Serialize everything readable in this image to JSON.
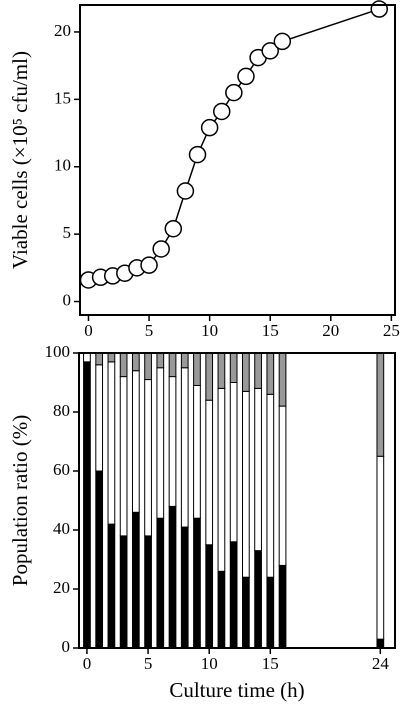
{
  "chart_data": [
    {
      "type": "line",
      "y_label": "Viable cells (×10⁵ cfu/ml)",
      "x": [
        0,
        1,
        2,
        3,
        4,
        5,
        6,
        7,
        8,
        9,
        10,
        11,
        12,
        13,
        14,
        15,
        16,
        24
      ],
      "values": [
        1.6,
        1.8,
        1.9,
        2.1,
        2.5,
        2.7,
        3.9,
        5.4,
        8.2,
        10.9,
        12.9,
        14.1,
        15.5,
        16.7,
        18.1,
        18.6,
        19.3,
        21.7
      ],
      "color": "#000000",
      "marker_fill": "#ffffff",
      "xlim": [
        -0.7,
        25.3
      ],
      "xticks": [
        0,
        5,
        10,
        15,
        20,
        25
      ],
      "ylim": [
        -1,
        22
      ],
      "yticks": [
        0,
        5,
        10,
        15,
        20
      ]
    },
    {
      "type": "bar",
      "stacked": true,
      "x_label": "Culture time (h)",
      "y_label": "Population ratio (%)",
      "x": [
        0,
        1,
        2,
        3,
        4,
        5,
        6,
        7,
        8,
        9,
        10,
        11,
        12,
        13,
        14,
        15,
        16,
        24
      ],
      "series": [
        {
          "color": "#000000",
          "values": [
            97,
            60,
            42,
            38,
            46,
            38,
            44,
            48,
            41,
            44,
            35,
            26,
            36,
            24,
            33,
            24,
            28,
            3
          ]
        },
        {
          "color": "#ffffff",
          "values": [
            3,
            36,
            55,
            54,
            48,
            53,
            51,
            44,
            54,
            45,
            49,
            62,
            54,
            63,
            55,
            62,
            54,
            62
          ]
        },
        {
          "color": "#999999",
          "values": [
            0,
            4,
            3,
            8,
            6,
            9,
            5,
            8,
            5,
            11,
            16,
            12,
            10,
            13,
            12,
            14,
            18,
            35
          ]
        }
      ],
      "xlim": [
        -0.65,
        25.2
      ],
      "xticks": [
        0,
        5,
        10,
        15,
        24
      ],
      "ylim": [
        0,
        100
      ],
      "yticks": [
        0,
        20,
        40,
        60,
        80,
        100
      ]
    }
  ]
}
